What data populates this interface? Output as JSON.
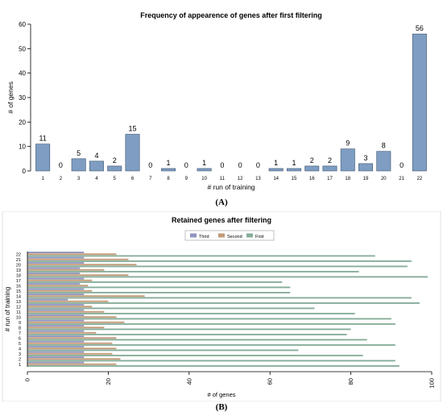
{
  "captions": {
    "a": "(A)",
    "b": "(B)"
  },
  "chart_data": [
    {
      "type": "bar",
      "title": "Frequency of appearence of genes after first filtering",
      "xlabel": "# run of training",
      "ylabel": "# of genes",
      "categories": [
        "1",
        "2",
        "3",
        "4",
        "5",
        "6",
        "7",
        "8",
        "9",
        "10",
        "11",
        "12",
        "13",
        "14",
        "15",
        "16",
        "17",
        "18",
        "19",
        "20",
        "21",
        "22"
      ],
      "values": [
        11,
        0,
        5,
        4,
        2,
        15,
        0,
        1,
        0,
        1,
        0,
        0,
        0,
        1,
        1,
        2,
        2,
        9,
        3,
        8,
        0,
        56
      ],
      "ylim": [
        0,
        60
      ],
      "yticks": [
        0,
        10,
        20,
        30,
        40,
        50,
        60
      ],
      "data_labels": true,
      "bar_color": "#7f9dc2",
      "grid": false
    },
    {
      "type": "bar",
      "orientation": "horizontal",
      "title": "Retained genes after filtering",
      "xlabel": "# of genes",
      "ylabel": "# run of training",
      "categories": [
        "1",
        "2",
        "3",
        "4",
        "5",
        "6",
        "7",
        "8",
        "9",
        "10",
        "11",
        "12",
        "13",
        "14",
        "15",
        "16",
        "17",
        "18",
        "19",
        "20",
        "21",
        "22"
      ],
      "series": [
        {
          "name": "First",
          "color": "#86ad99",
          "values": [
            92,
            91,
            83,
            67,
            91,
            84,
            79,
            80,
            91,
            90,
            81,
            71,
            97,
            95,
            65,
            65,
            63,
            99,
            82,
            94,
            95,
            86
          ]
        },
        {
          "name": "Second",
          "color": "#c29a78",
          "values": [
            22,
            23,
            21,
            22,
            21,
            22,
            17,
            19,
            24,
            22,
            19,
            16,
            20,
            29,
            16,
            15,
            16,
            25,
            19,
            27,
            25,
            22
          ]
        },
        {
          "name": "Third",
          "color": "#8f94bf",
          "values": [
            14,
            14,
            14,
            14,
            14,
            14,
            14,
            14,
            14,
            14,
            14,
            14,
            10,
            14,
            14,
            13,
            14,
            13,
            13,
            14,
            14,
            14
          ]
        }
      ],
      "legend_order": [
        "Third",
        "Second",
        "First"
      ],
      "legend_position": "top",
      "xlim": [
        0,
        100
      ],
      "xticks": [
        0,
        20,
        40,
        60,
        80,
        100
      ],
      "grid": false
    }
  ]
}
